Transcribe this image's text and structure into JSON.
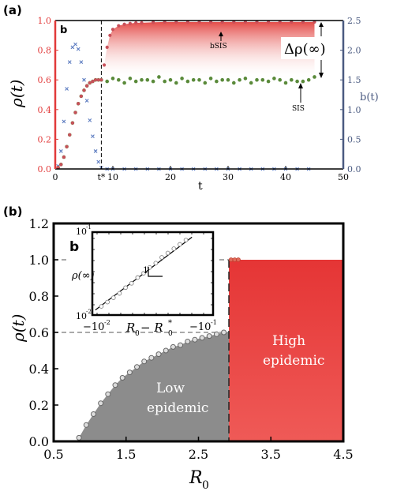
{
  "colors": {
    "red_axis": "#e23a3a",
    "blue_axis": "#4a5a80",
    "green_dot": "#5a8a3a",
    "red_dot": "#c8505a",
    "blue_cross": "#5b7bc0",
    "high_fill": "#e53b3b",
    "low_fill": "#8c8c8c"
  },
  "chart_data": [
    {
      "panel": "(a)",
      "type": "scatter",
      "xlabel": "t",
      "ylabel_left": "ρ(t)",
      "ylabel_right": "b(t)",
      "xlim": [
        0,
        50
      ],
      "ylim_left": [
        0,
        1.0
      ],
      "ylim_right": [
        0,
        2.5
      ],
      "x_ticks": [
        "0",
        "t*",
        "10",
        "20",
        "30",
        "40",
        "50"
      ],
      "y_ticks_left": [
        "0.0",
        "0.2",
        "0.4",
        "0.6",
        "0.8",
        "1.0"
      ],
      "y_ticks_right": [
        "0.0",
        "0.5",
        "1.0",
        "1.5",
        "2.0",
        "2.5"
      ],
      "inner_label": "b",
      "t_star": 8,
      "annotations": [
        "bSIS",
        "SIS",
        "Δρ(∞)"
      ],
      "grid": false,
      "series": [
        {
          "name": "bSIS",
          "axis": "left",
          "x": [
            0.5,
            1,
            1.5,
            2,
            2.5,
            3,
            3.5,
            4,
            4.5,
            5,
            5.5,
            6,
            6.5,
            7,
            7.5,
            8,
            8.5,
            9,
            9.5,
            10,
            11,
            12,
            13,
            14,
            15,
            17,
            19,
            21,
            23,
            25,
            27,
            29,
            31,
            33,
            35,
            37,
            39,
            41,
            43,
            45
          ],
          "y": [
            0.01,
            0.03,
            0.08,
            0.15,
            0.23,
            0.31,
            0.38,
            0.44,
            0.49,
            0.53,
            0.56,
            0.58,
            0.59,
            0.6,
            0.6,
            0.6,
            0.7,
            0.82,
            0.9,
            0.94,
            0.965,
            0.975,
            0.98,
            0.985,
            0.985,
            0.988,
            0.99,
            0.99,
            0.99,
            0.99,
            0.99,
            0.99,
            0.99,
            0.99,
            0.99,
            0.99,
            0.99,
            0.99,
            0.99,
            0.99
          ]
        },
        {
          "name": "SIS",
          "axis": "left",
          "x": [
            0.5,
            1,
            1.5,
            2,
            2.5,
            3,
            3.5,
            4,
            4.5,
            5,
            5.5,
            6,
            6.5,
            7,
            7.5,
            8,
            9,
            10,
            11,
            12,
            13,
            14,
            15,
            16,
            17,
            18,
            19,
            20,
            21,
            22,
            23,
            24,
            25,
            26,
            27,
            28,
            29,
            30,
            31,
            32,
            33,
            34,
            35,
            36,
            37,
            38,
            39,
            40,
            41,
            42,
            43,
            44,
            45
          ],
          "y": [
            0.01,
            0.03,
            0.08,
            0.15,
            0.23,
            0.31,
            0.38,
            0.44,
            0.49,
            0.53,
            0.56,
            0.58,
            0.59,
            0.6,
            0.6,
            0.6,
            0.59,
            0.61,
            0.6,
            0.58,
            0.61,
            0.59,
            0.6,
            0.6,
            0.59,
            0.62,
            0.59,
            0.6,
            0.58,
            0.61,
            0.59,
            0.6,
            0.6,
            0.58,
            0.61,
            0.59,
            0.6,
            0.6,
            0.58,
            0.6,
            0.61,
            0.58,
            0.6,
            0.6,
            0.59,
            0.61,
            0.6,
            0.58,
            0.6,
            0.59,
            0.59,
            0.6,
            0.62
          ]
        },
        {
          "name": "b(t)",
          "axis": "right",
          "x": [
            0.5,
            1,
            1.5,
            2,
            2.5,
            3,
            3.5,
            4,
            4.5,
            5,
            5.5,
            6,
            6.5,
            7,
            7.5,
            8,
            9,
            10,
            12,
            14,
            16,
            18,
            20,
            22,
            24,
            26,
            28,
            30,
            32,
            34,
            36,
            38,
            40,
            42,
            44
          ],
          "y": [
            0.05,
            0.3,
            0.8,
            1.35,
            1.8,
            2.05,
            2.1,
            2.02,
            1.8,
            1.5,
            1.15,
            0.82,
            0.55,
            0.3,
            0.12,
            0.02,
            0,
            0,
            0,
            0,
            0,
            0,
            0,
            0,
            0,
            0,
            0,
            0,
            0,
            0,
            0,
            0,
            0,
            0,
            0
          ]
        }
      ]
    },
    {
      "panel": "(b)",
      "type": "scatter",
      "xlabel": "R0",
      "ylabel": "ρ(t)",
      "xlim": [
        0.5,
        4.5
      ],
      "ylim": [
        0,
        1.2
      ],
      "x_ticks": [
        "0.5",
        "1.5",
        "2.5",
        "3.5",
        "4.5"
      ],
      "y_ticks": [
        "0.0",
        "0.2",
        "0.4",
        "0.6",
        "0.8",
        "1.0",
        "1.2"
      ],
      "inner_label": "b",
      "threshold_R0": 2.92,
      "grid": false,
      "regions": [
        "Low epidemic",
        "High epidemic"
      ],
      "series": [
        {
          "name": "Low",
          "x": [
            0.85,
            0.95,
            1.05,
            1.15,
            1.25,
            1.35,
            1.45,
            1.55,
            1.65,
            1.75,
            1.85,
            1.95,
            2.05,
            2.15,
            2.25,
            2.35,
            2.45,
            2.55,
            2.65,
            2.75,
            2.85
          ],
          "y": [
            0.02,
            0.09,
            0.15,
            0.21,
            0.26,
            0.31,
            0.35,
            0.38,
            0.41,
            0.44,
            0.46,
            0.48,
            0.5,
            0.52,
            0.53,
            0.55,
            0.56,
            0.57,
            0.58,
            0.59,
            0.6
          ]
        },
        {
          "name": "High",
          "x": [
            2.95,
            3.0,
            3.05
          ],
          "y": [
            1.0,
            1.0,
            1.0
          ]
        }
      ],
      "inset": {
        "type": "scatter",
        "xlabel": "R0 − R0*",
        "ylabel": "ρ(∞)",
        "x_ticks": [
          "−10^-2",
          "−10^-1"
        ],
        "y_ticks": [
          "10^-1",
          "10^-2"
        ],
        "slope_label": "1",
        "points_logx": [
          -1.85,
          -1.75,
          -1.65,
          -1.55,
          -1.45,
          -1.35,
          -1.25,
          -1.15,
          -1.05,
          -0.95,
          -0.85,
          -0.75,
          -0.65,
          -0.55,
          -0.45
        ],
        "points_logy": [
          -1.88,
          -1.82,
          -1.76,
          -1.7,
          -1.62,
          -1.56,
          -1.48,
          -1.42,
          -1.34,
          -1.28,
          -1.2,
          -1.14,
          -1.08,
          -1.02,
          -0.96
        ]
      }
    }
  ],
  "labels": {
    "panel_a": "(a)",
    "panel_b": "(b)",
    "a_inner_b": "b",
    "b_inner_b": "b",
    "bsis": "bSIS",
    "sis": "SIS",
    "delta_rho": "Δρ(∞)",
    "b_of_t": "b(t)",
    "rho_t_a": "ρ(t)",
    "rho_t_b": "ρ(t)",
    "x_a": "t",
    "t_star": "t*",
    "low": [
      "Low",
      "epidemic"
    ],
    "high": [
      "High",
      "epidemic"
    ],
    "r0": "R",
    "r0_sub": "0",
    "inset_rho": "ρ(∞)",
    "inset_slope": "1",
    "inset_x_pre": "R",
    "inset_x_sub": "0",
    "inset_x_mid": " − R",
    "inset_x_sub2": "0",
    "inset_x_sup": "*",
    "inset_xt_left": "−10",
    "inset_xt_left_exp": "-2",
    "inset_xt_right": "−10",
    "inset_xt_right_exp": "-1",
    "inset_yt_top": "10",
    "inset_yt_top_exp": "-1",
    "inset_yt_bot": "10",
    "inset_yt_bot_exp": "-2"
  }
}
